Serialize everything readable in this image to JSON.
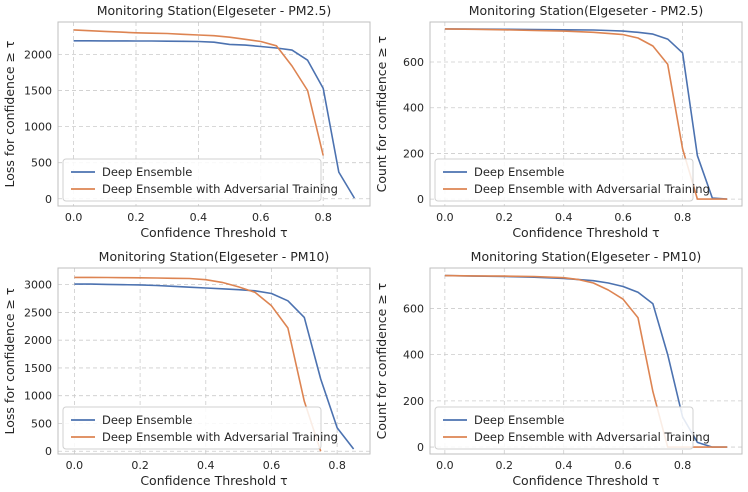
{
  "chart_data": [
    {
      "type": "line",
      "title": "Monitoring Station(Elgeseter - PM2.5)",
      "xlabel": "Confidence Threshold τ",
      "ylabel": "Loss for confidence ≥ τ",
      "xlim": [
        -0.05,
        0.95
      ],
      "ylim": [
        -100,
        2450
      ],
      "xticks": [
        "0.0",
        "0.2",
        "0.4",
        "0.6",
        "0.8"
      ],
      "xtick_values": [
        0.0,
        0.2,
        0.4,
        0.6,
        0.8
      ],
      "yticks": [
        "0",
        "500",
        "1000",
        "1500",
        "2000"
      ],
      "ytick_values": [
        0,
        500,
        1000,
        1500,
        2000
      ],
      "grid": true,
      "legend_position": "lower-left",
      "series": [
        {
          "name": "Deep Ensemble",
          "color": "#4c72b0",
          "x": [
            0.0,
            0.05,
            0.1,
            0.15,
            0.2,
            0.25,
            0.3,
            0.35,
            0.4,
            0.45,
            0.5,
            0.55,
            0.6,
            0.65,
            0.7,
            0.75,
            0.8,
            0.85,
            0.9
          ],
          "y": [
            2190,
            2190,
            2188,
            2188,
            2186,
            2186,
            2184,
            2182,
            2180,
            2170,
            2140,
            2130,
            2110,
            2090,
            2060,
            1920,
            1530,
            370,
            10
          ]
        },
        {
          "name": "Deep Ensemble with Adversarial Training",
          "color": "#dd8452",
          "x": [
            0.0,
            0.05,
            0.1,
            0.15,
            0.2,
            0.25,
            0.3,
            0.35,
            0.4,
            0.45,
            0.5,
            0.55,
            0.6,
            0.65,
            0.7,
            0.75,
            0.8
          ],
          "y": [
            2340,
            2330,
            2320,
            2310,
            2300,
            2295,
            2290,
            2280,
            2270,
            2260,
            2240,
            2210,
            2180,
            2120,
            1840,
            1500,
            600
          ]
        }
      ]
    },
    {
      "type": "line",
      "title": "Monitoring Station(Elgeseter - PM2.5)",
      "xlabel": "Confidence Threshold τ",
      "ylabel": "Count for confidence ≥ τ",
      "xlim": [
        -0.05,
        1.0
      ],
      "ylim": [
        -30,
        775
      ],
      "xticks": [
        "0.0",
        "0.2",
        "0.4",
        "0.6",
        "0.8"
      ],
      "xtick_values": [
        0.0,
        0.2,
        0.4,
        0.6,
        0.8
      ],
      "yticks": [
        "0",
        "200",
        "400",
        "600"
      ],
      "ytick_values": [
        0,
        200,
        400,
        600
      ],
      "grid": true,
      "legend_position": "lower-left",
      "series": [
        {
          "name": "Deep Ensemble",
          "color": "#4c72b0",
          "x": [
            0.0,
            0.1,
            0.2,
            0.3,
            0.4,
            0.5,
            0.55,
            0.6,
            0.65,
            0.7,
            0.75,
            0.8,
            0.85,
            0.9,
            0.95
          ],
          "y": [
            745,
            744,
            743,
            742,
            741,
            740,
            738,
            735,
            730,
            722,
            700,
            640,
            190,
            5,
            0
          ]
        },
        {
          "name": "Deep Ensemble with Adversarial Training",
          "color": "#dd8452",
          "x": [
            0.0,
            0.1,
            0.2,
            0.3,
            0.4,
            0.5,
            0.55,
            0.6,
            0.65,
            0.7,
            0.75,
            0.8,
            0.85,
            0.9,
            0.95
          ],
          "y": [
            745,
            743,
            741,
            738,
            735,
            730,
            725,
            720,
            705,
            670,
            590,
            220,
            0,
            0,
            0
          ]
        }
      ]
    },
    {
      "type": "line",
      "title": "Monitoring Station(Elgeseter - PM10)",
      "xlabel": "Confidence Threshold τ",
      "ylabel": "Loss for confidence ≥ τ",
      "xlim": [
        -0.05,
        0.9
      ],
      "ylim": [
        -50,
        3300
      ],
      "xticks": [
        "0.0",
        "0.2",
        "0.4",
        "0.6",
        "0.8"
      ],
      "xtick_values": [
        0.0,
        0.2,
        0.4,
        0.6,
        0.8
      ],
      "yticks": [
        "0",
        "500",
        "1000",
        "1500",
        "2000",
        "2500",
        "3000"
      ],
      "ytick_values": [
        0,
        500,
        1000,
        1500,
        2000,
        2500,
        3000
      ],
      "grid": true,
      "legend_position": "lower-left",
      "series": [
        {
          "name": "Deep Ensemble",
          "color": "#4c72b0",
          "x": [
            0.0,
            0.05,
            0.1,
            0.15,
            0.2,
            0.25,
            0.3,
            0.35,
            0.4,
            0.45,
            0.5,
            0.55,
            0.6,
            0.65,
            0.7,
            0.75,
            0.8,
            0.85
          ],
          "y": [
            3010,
            3010,
            3005,
            3000,
            2995,
            2985,
            2970,
            2955,
            2940,
            2925,
            2910,
            2890,
            2840,
            2710,
            2410,
            1300,
            420,
            40
          ]
        },
        {
          "name": "Deep Ensemble with Adversarial Training",
          "color": "#dd8452",
          "x": [
            0.0,
            0.05,
            0.1,
            0.15,
            0.2,
            0.25,
            0.3,
            0.35,
            0.4,
            0.45,
            0.5,
            0.55,
            0.6,
            0.65,
            0.7,
            0.75
          ],
          "y": [
            3130,
            3130,
            3128,
            3126,
            3124,
            3120,
            3115,
            3110,
            3090,
            3040,
            2960,
            2860,
            2620,
            2220,
            900,
            0
          ]
        }
      ]
    },
    {
      "type": "line",
      "title": "Monitoring Station(Elgeseter - PM10)",
      "xlabel": "Confidence Threshold τ",
      "ylabel": "Count for confidence ≥ τ",
      "xlim": [
        -0.05,
        1.0
      ],
      "ylim": [
        -30,
        775
      ],
      "xticks": [
        "0.0",
        "0.2",
        "0.4",
        "0.6",
        "0.8"
      ],
      "xtick_values": [
        0.0,
        0.2,
        0.4,
        0.6,
        0.8
      ],
      "yticks": [
        "0",
        "200",
        "400",
        "600"
      ],
      "ytick_values": [
        0,
        200,
        400,
        600
      ],
      "grid": true,
      "legend_position": "lower-left",
      "series": [
        {
          "name": "Deep Ensemble",
          "color": "#4c72b0",
          "x": [
            0.0,
            0.1,
            0.2,
            0.3,
            0.4,
            0.45,
            0.5,
            0.55,
            0.6,
            0.65,
            0.7,
            0.75,
            0.8,
            0.85,
            0.9,
            0.95
          ],
          "y": [
            742,
            740,
            738,
            735,
            730,
            725,
            720,
            710,
            695,
            670,
            620,
            400,
            130,
            20,
            0,
            0
          ]
        },
        {
          "name": "Deep Ensemble with Adversarial Training",
          "color": "#dd8452",
          "x": [
            0.0,
            0.1,
            0.2,
            0.3,
            0.4,
            0.45,
            0.5,
            0.55,
            0.6,
            0.65,
            0.7,
            0.75,
            0.8,
            0.85,
            0.9,
            0.95
          ],
          "y": [
            742,
            741,
            740,
            738,
            733,
            725,
            710,
            680,
            640,
            560,
            240,
            0,
            0,
            0,
            0,
            0
          ]
        }
      ]
    }
  ]
}
